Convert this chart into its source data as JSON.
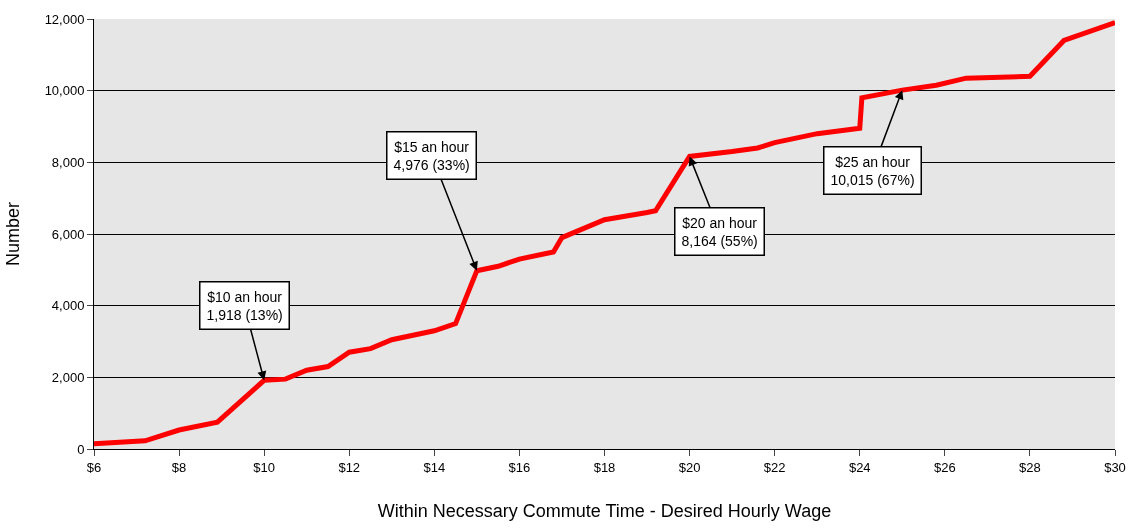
{
  "chart_data": {
    "type": "line",
    "xlabel": "Within Necessary Commute Time - Desired Hourly Wage",
    "ylabel": "Number",
    "x": [
      6,
      7.2,
      8,
      8.9,
      10,
      10.5,
      11,
      11.5,
      12,
      12.5,
      13,
      14,
      14.5,
      15,
      15.5,
      16,
      16.8,
      17,
      18,
      19,
      19.2,
      20,
      21,
      21.6,
      22,
      23,
      24,
      24.05,
      25,
      25.8,
      26.5,
      28,
      28.8,
      30
    ],
    "series": [
      {
        "color": "#ff0000",
        "values": [
          150,
          230,
          530,
          750,
          1918,
          1950,
          2200,
          2300,
          2700,
          2800,
          3050,
          3300,
          3500,
          4976,
          5100,
          5300,
          5500,
          5900,
          6400,
          6600,
          6650,
          8164,
          8300,
          8400,
          8550,
          8800,
          8950,
          9800,
          10015,
          10150,
          10350,
          10400,
          11400,
          11900
        ]
      }
    ],
    "xlim": [
      6,
      30
    ],
    "ylim": [
      0,
      12000
    ],
    "xticks": [
      {
        "value": 6,
        "label": "$6"
      },
      {
        "value": 8,
        "label": "$8"
      },
      {
        "value": 10,
        "label": "$10"
      },
      {
        "value": 12,
        "label": "$12"
      },
      {
        "value": 14,
        "label": "$14"
      },
      {
        "value": 16,
        "label": "$16"
      },
      {
        "value": 18,
        "label": "$18"
      },
      {
        "value": 20,
        "label": "$20"
      },
      {
        "value": 22,
        "label": "$22"
      },
      {
        "value": 24,
        "label": "$24"
      },
      {
        "value": 26,
        "label": "$26"
      },
      {
        "value": 28,
        "label": "$28"
      },
      {
        "value": 30,
        "label": "$30"
      }
    ],
    "yticks": [
      0,
      {
        "value": 2000,
        "label": "2,000"
      },
      {
        "value": 4000,
        "label": "4,000"
      },
      {
        "value": 6000,
        "label": "6,000"
      },
      {
        "value": 8000,
        "label": "8,000"
      },
      {
        "value": 10000,
        "label": "10,000"
      },
      {
        "value": 12000,
        "label": "12,000"
      }
    ],
    "grid": "y",
    "marker": "none",
    "line_style": "solid",
    "annotations": [
      {
        "text": "$10 an hour\n1,918 (13%)",
        "x": 10,
        "y": 1918
      },
      {
        "text": "$15 an hour\n4,976 (33%)",
        "x": 15,
        "y": 4976
      },
      {
        "text": "$20 an hour\n8,164 (55%)",
        "x": 20,
        "y": 8164
      },
      {
        "text": "$25 an hour\n10,015 (67%)",
        "x": 25,
        "y": 10015
      }
    ]
  }
}
